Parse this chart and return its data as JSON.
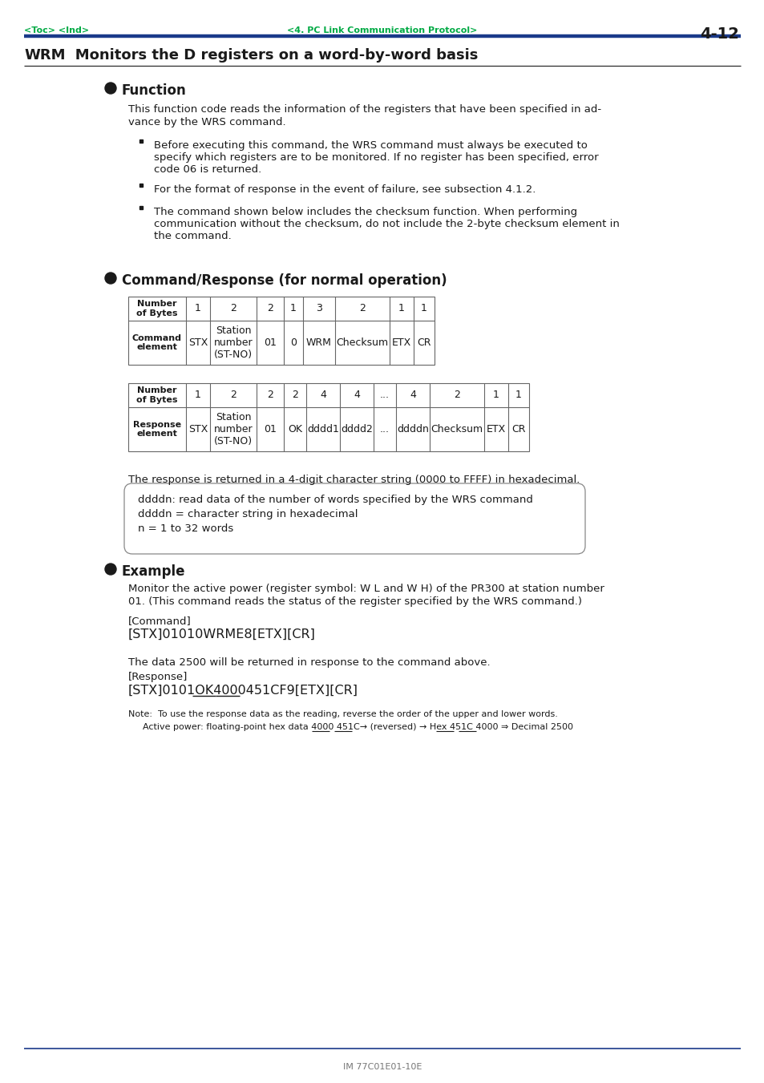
{
  "page_header_left": "<Toc> <Ind>",
  "page_header_center": "<4. PC Link Communication Protocol>",
  "page_header_right": "4-12",
  "header_color": "#00aa44",
  "header_line_color": "#1a3a8a",
  "title_prefix": "WRM",
  "title_rest": "   Monitors the D registers on a word-by-word basis",
  "section1_title": "Function",
  "section2_title": "Command/Response (for normal operation)",
  "section3_title": "Example",
  "body1_line1": "This function code reads the information of the registers that have been specified in ad-",
  "body1_line2": "vance by the WRS command.",
  "bullet1": "Before executing this command, the WRS command must always be executed to\nspecify which registers are to be monitored. If no register has been specified, error\ncode 06 is returned.",
  "bullet2": "For the format of response in the event of failure, see subsection 4.1.2.",
  "bullet3": "The command shown below includes the checksum function. When performing\ncommunication without the checksum, do not include the 2-byte checksum element in\nthe command.",
  "cmd_table_header": [
    "Number\nof Bytes",
    "1",
    "2",
    "2",
    "1",
    "3",
    "2",
    "1",
    "1"
  ],
  "cmd_table_row": [
    "Command\nelement",
    "STX",
    "Station\nnumber\n(ST-NO)",
    "01",
    "0",
    "WRM",
    "Checksum",
    "ETX",
    "CR"
  ],
  "cmd_col_widths": [
    72,
    30,
    58,
    34,
    24,
    40,
    68,
    30,
    26
  ],
  "resp_table_header": [
    "Number\nof Bytes",
    "1",
    "2",
    "2",
    "2",
    "4",
    "4",
    "...",
    "4",
    "2",
    "1",
    "1"
  ],
  "resp_table_row": [
    "Response\nelement",
    "STX",
    "Station\nnumber\n(ST-NO)",
    "01",
    "OK",
    "dddd1",
    "dddd2",
    "...",
    "ddddn",
    "Checksum",
    "ETX",
    "CR"
  ],
  "resp_col_widths": [
    72,
    30,
    58,
    34,
    28,
    42,
    42,
    28,
    42,
    68,
    30,
    26
  ],
  "response_text": "The response is returned in a 4-digit character string (0000 to FFFF) in hexadecimal.",
  "box_lines": [
    "ddddn: read data of the number of words specified by the WRS command",
    "ddddn = character string in hexadecimal",
    "n = 1 to 32 words"
  ],
  "example_body1a": "Monitor the active power (register symbol: W L and W H) of the PR300 at station number",
  "example_body1b": "01. (This command reads the status of the register specified by the WRS command.)",
  "example_label1": "[Command]",
  "example_cmd1": "[STX]01010WRME8[ETX][CR]",
  "example_body2": "The data 2500 will be returned in response to the command above.",
  "example_label2": "[Response]",
  "example_cmd2": "[STX]0101OK4000451CF9[ETX][CR]",
  "note_text": "Note:  To use the response data as the reading, reverse the order of the upper and lower words.",
  "note_detail1": "Active power: floating-point hex data ",
  "note_detail2": "4000",
  "note_detail3": " ",
  "note_detail4": "451C",
  "note_detail5": "→ (reversed) → Hex ",
  "note_detail6": "451C",
  "note_detail7": " ",
  "note_detail8": "4000",
  "note_detail9": " ⇒ Decimal 2500",
  "footer_text": "IM 77C01E01-10E",
  "bg_color": "#ffffff",
  "text_color": "#1a1a1a",
  "green_color": "#00aa44",
  "blue_color": "#1a3a8a"
}
